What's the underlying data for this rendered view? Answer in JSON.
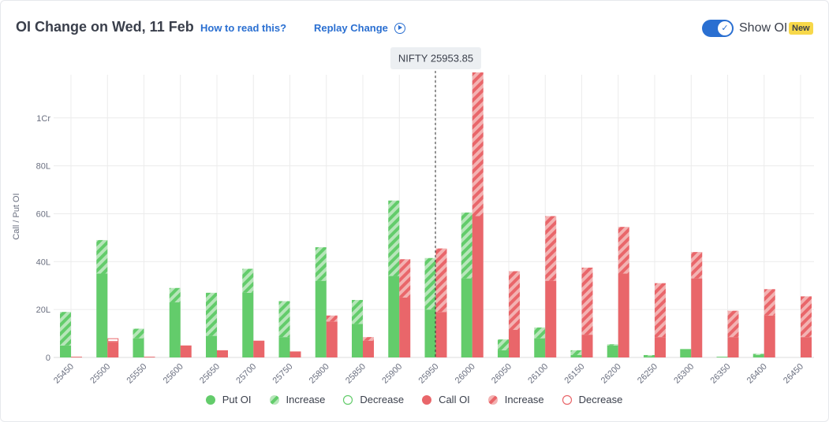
{
  "header": {
    "title": "OI Change on Wed, 11 Feb",
    "how_to_read": "How to read this?",
    "replay": "Replay Change",
    "show_oi_label": "Show OI",
    "show_oi_on": true,
    "badge": "New"
  },
  "colors": {
    "put": "#63cc6b",
    "put_light": "#b7e6ba",
    "call": "#e9666a",
    "call_light": "#f3b2b2",
    "grid": "#ececec",
    "marker": "#333333"
  },
  "chart_data": {
    "type": "bar",
    "title": "OI Change on Wed, 11 Feb",
    "ylabel": "Call / Put OI",
    "ylim": [
      0,
      118
    ],
    "y_unit": "Lakh",
    "y_ticks": [
      {
        "value": 0,
        "label": "0"
      },
      {
        "value": 20,
        "label": "20L"
      },
      {
        "value": 40,
        "label": "40L"
      },
      {
        "value": 60,
        "label": "60L"
      },
      {
        "value": 80,
        "label": "80L"
      },
      {
        "value": 100,
        "label": "1Cr"
      }
    ],
    "categories": [
      "25450",
      "25500",
      "25550",
      "25600",
      "25650",
      "25700",
      "25750",
      "25800",
      "25850",
      "25900",
      "25950",
      "26000",
      "26050",
      "26100",
      "26150",
      "26200",
      "26250",
      "26300",
      "26350",
      "26400",
      "26450"
    ],
    "spot": {
      "label": "NIFTY 25953.85",
      "value": 25953.85
    },
    "put_oi": [
      5,
      35,
      8,
      23,
      9,
      27,
      8.5,
      32,
      14,
      34,
      20,
      33,
      3,
      8,
      1,
      5,
      0.5,
      3.5,
      0.3,
      1,
      0
    ],
    "put_increase": [
      14,
      14,
      4,
      6,
      18,
      10,
      15,
      14,
      10,
      31.5,
      21.5,
      27.5,
      4.5,
      4.5,
      2,
      0.5,
      0.5,
      0,
      0,
      0.5,
      0
    ],
    "put_decrease": [
      0,
      0,
      0,
      0,
      0,
      0,
      0,
      0,
      0,
      0,
      0,
      0,
      0,
      0,
      0,
      0,
      0,
      0,
      0,
      0,
      0
    ],
    "call_oi": [
      0.3,
      6.5,
      0.3,
      5,
      3,
      7,
      2.5,
      15,
      7,
      25,
      19,
      59,
      11.5,
      32,
      9.5,
      35,
      8.5,
      33,
      8.5,
      17.5,
      8.5
    ],
    "call_increase": [
      0,
      0,
      0,
      0,
      0,
      0,
      0,
      2.5,
      1.5,
      16,
      26.5,
      60,
      24.5,
      27,
      28,
      19.5,
      22.5,
      11,
      11,
      11,
      17
    ],
    "call_decrease": [
      0,
      1.5,
      0,
      0,
      0,
      0,
      0,
      0,
      0,
      0,
      0,
      0,
      0,
      0,
      0,
      0,
      0,
      0,
      0,
      0,
      0
    ],
    "legend": [
      {
        "label": "Put OI",
        "style": "put-solid"
      },
      {
        "label": "Increase",
        "style": "put-increase"
      },
      {
        "label": "Decrease",
        "style": "put-decrease"
      },
      {
        "label": "Call OI",
        "style": "call-solid"
      },
      {
        "label": "Increase",
        "style": "call-increase"
      },
      {
        "label": "Decrease",
        "style": "call-decrease"
      }
    ],
    "grid": true,
    "legend_position": "bottom"
  }
}
